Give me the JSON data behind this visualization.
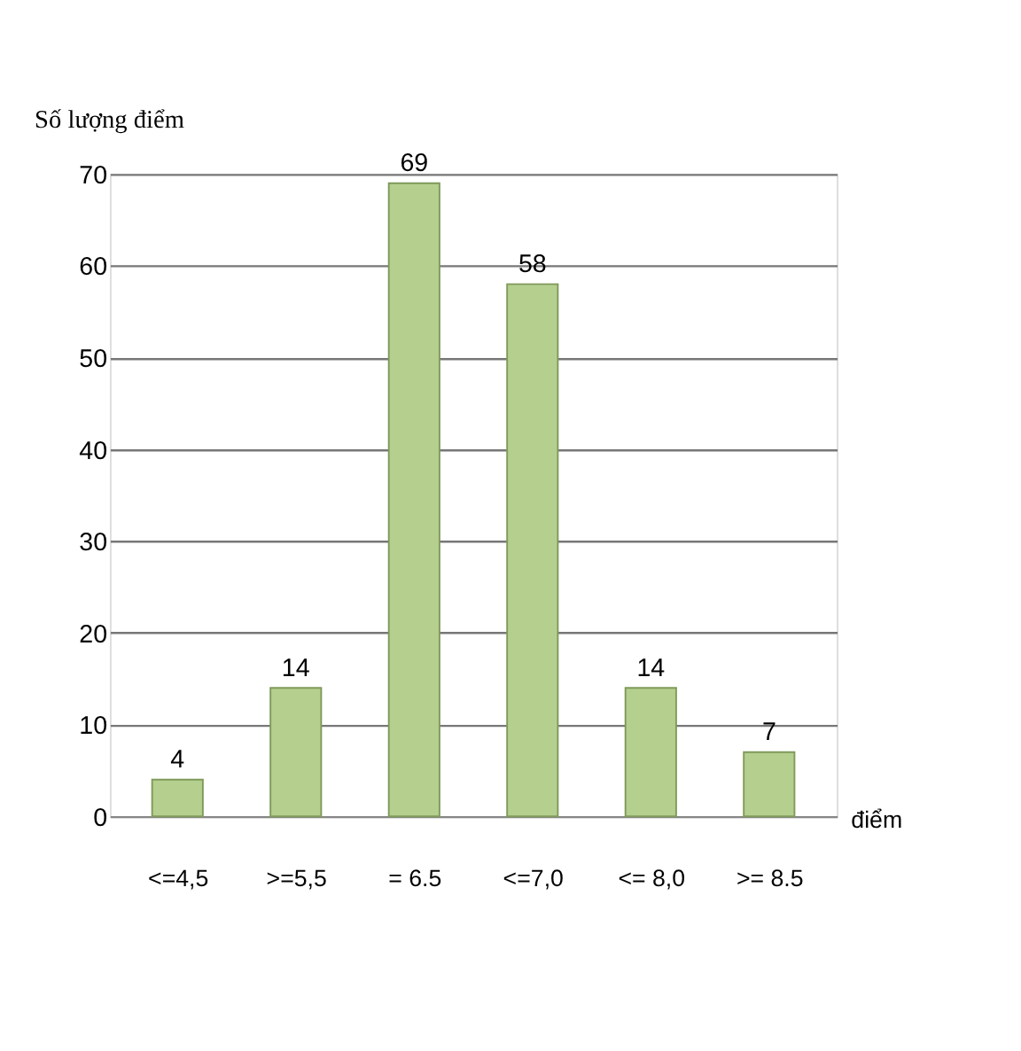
{
  "chart_data": {
    "type": "bar",
    "ylabel": "Số lượng điểm",
    "xlabel": "điểm",
    "categories": [
      "<=4,5",
      ">=5,5",
      "= 6.5",
      "<=7,0",
      "<= 8,0",
      ">= 8.5"
    ],
    "values": [
      4,
      14,
      69,
      58,
      14,
      7
    ],
    "color": "#b5cf8f",
    "ylim": [
      0,
      70
    ],
    "yticks": [
      0,
      10,
      20,
      30,
      40,
      50,
      60,
      70
    ],
    "grid": "y",
    "data_labels": true
  }
}
